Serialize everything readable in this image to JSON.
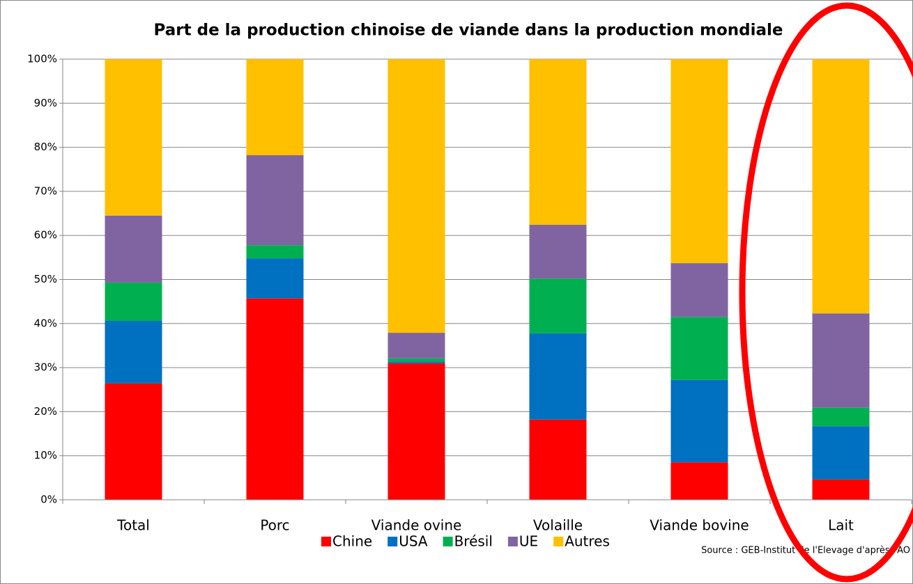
{
  "chart_data": {
    "type": "stacked_bar",
    "title": "Part de la production chinoise de viande dans la production mondiale",
    "categories": [
      "Total",
      "Porc",
      "Viande ovine",
      "Volaille",
      "Viande bovine",
      "Lait"
    ],
    "series": [
      {
        "name": "Chine",
        "color": "#ff0000",
        "values": [
          26.4,
          45.7,
          31.0,
          18.2,
          8.5,
          4.6
        ]
      },
      {
        "name": "USA",
        "color": "#0070c0",
        "values": [
          14.2,
          9.1,
          0.4,
          19.6,
          18.7,
          12.1
        ]
      },
      {
        "name": "Brésil",
        "color": "#00b050",
        "values": [
          8.7,
          3.0,
          0.7,
          12.4,
          14.3,
          4.2
        ]
      },
      {
        "name": "UE",
        "color": "#8064a2",
        "values": [
          15.2,
          20.4,
          5.8,
          12.2,
          12.2,
          21.4
        ]
      },
      {
        "name": "Autres",
        "color": "#ffc000",
        "values": [
          35.5,
          21.8,
          62.1,
          37.6,
          46.3,
          57.7
        ]
      }
    ],
    "ylim": [
      0,
      100
    ],
    "yticks": [
      {
        "value": 0,
        "label": "0%"
      },
      {
        "value": 10,
        "label": "10%"
      },
      {
        "value": 20,
        "label": "20%"
      },
      {
        "value": 30,
        "label": "30%"
      },
      {
        "value": 40,
        "label": "40%"
      },
      {
        "value": 50,
        "label": "50%"
      },
      {
        "value": 60,
        "label": "60%"
      },
      {
        "value": 70,
        "label": "70%"
      },
      {
        "value": 80,
        "label": "80%"
      },
      {
        "value": 90,
        "label": "90%"
      },
      {
        "value": 100,
        "label": "100%"
      }
    ],
    "grid": true,
    "legend": "bottom",
    "source": "Source : GEB-Institut de l'Elevage d'après FAO"
  }
}
